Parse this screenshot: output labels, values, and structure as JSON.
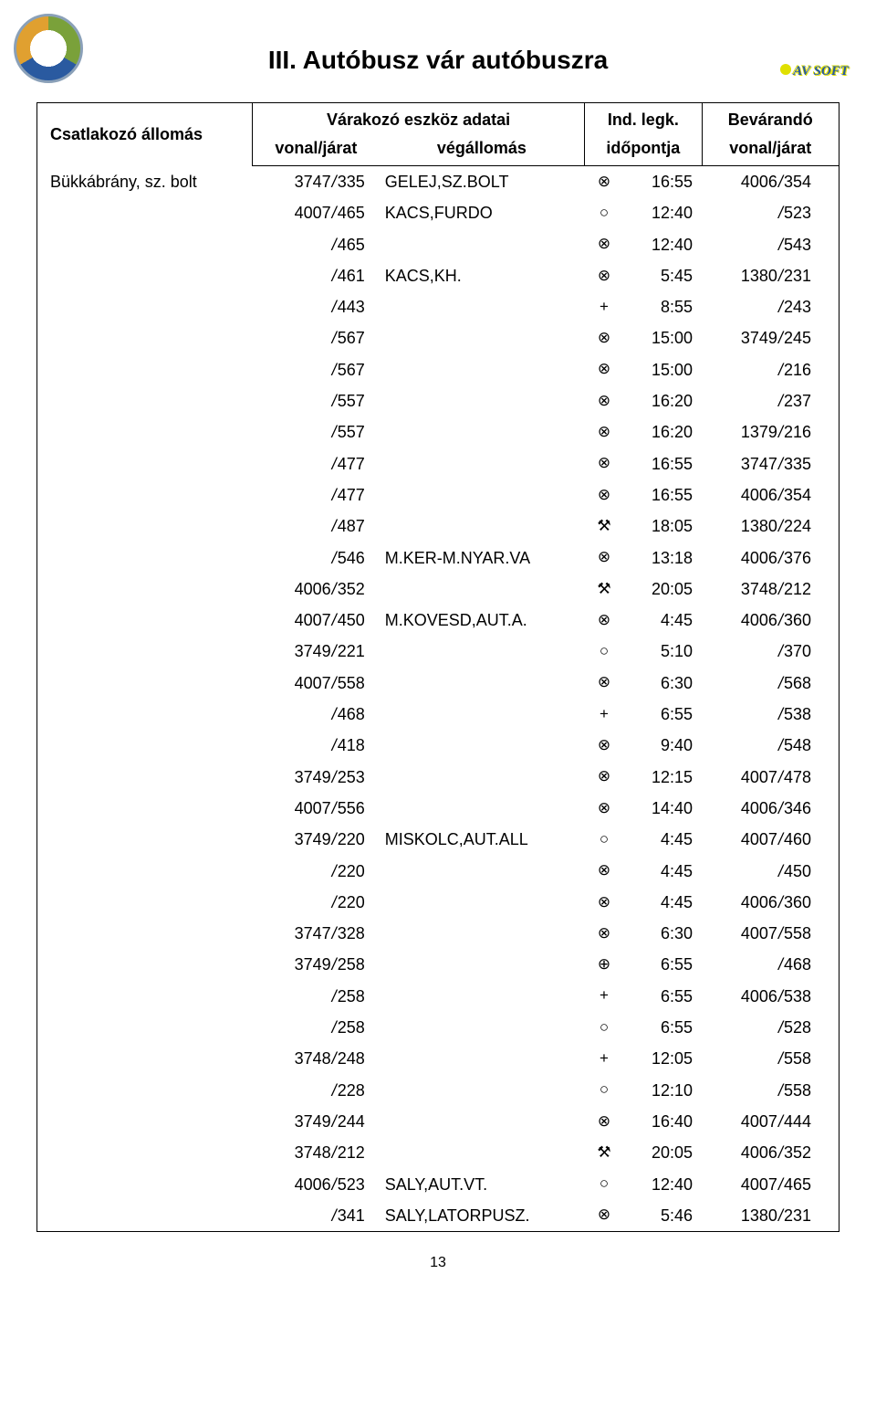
{
  "title": "III. Autóbusz vár autóbuszra",
  "logo_name": "company-logo",
  "stamp_text": "AV SOFT",
  "page_number": "13",
  "headers": {
    "csat": "Csatlakozó állomás",
    "varakozo": "Várakozó eszköz adatai",
    "vonal1": "vonal/járat",
    "vegallomas": "végállomás",
    "indlegk": "Ind. legk.",
    "idopont": "időpontja",
    "bevarando": "Bevárandó",
    "vonal2": "vonal/járat"
  },
  "station": "Bükkábrány, sz. bolt",
  "symbols": {
    "crossO": "⊗",
    "circle": "○",
    "plus": "+",
    "hammer": "⚒",
    "plusO": "⊕"
  },
  "rows": [
    {
      "vj1a": "3747",
      "vj1b": "335",
      "veg": "GELEJ,SZ.BOLT",
      "sym": "crossO",
      "time": "16:55",
      "vj2a": "4006",
      "vj2b": "354"
    },
    {
      "vj1a": "4007",
      "vj1b": "465",
      "veg": "KACS,FURDO",
      "sym": "circle",
      "time": "12:40",
      "vj2a": "",
      "vj2b": "523"
    },
    {
      "vj1a": "",
      "vj1b": "465",
      "veg": "",
      "sym": "crossO",
      "time": "12:40",
      "vj2a": "",
      "vj2b": "543"
    },
    {
      "vj1a": "",
      "vj1b": "461",
      "veg": "KACS,KH.",
      "sym": "crossO",
      "time": "5:45",
      "vj2a": "1380",
      "vj2b": "231"
    },
    {
      "vj1a": "",
      "vj1b": "443",
      "veg": "",
      "sym": "plus",
      "time": "8:55",
      "vj2a": "",
      "vj2b": "243"
    },
    {
      "vj1a": "",
      "vj1b": "567",
      "veg": "",
      "sym": "crossO",
      "time": "15:00",
      "vj2a": "3749",
      "vj2b": "245"
    },
    {
      "vj1a": "",
      "vj1b": "567",
      "veg": "",
      "sym": "crossO",
      "time": "15:00",
      "vj2a": "",
      "vj2b": "216"
    },
    {
      "vj1a": "",
      "vj1b": "557",
      "veg": "",
      "sym": "crossO",
      "time": "16:20",
      "vj2a": "",
      "vj2b": "237"
    },
    {
      "vj1a": "",
      "vj1b": "557",
      "veg": "",
      "sym": "crossO",
      "time": "16:20",
      "vj2a": "1379",
      "vj2b": "216"
    },
    {
      "vj1a": "",
      "vj1b": "477",
      "veg": "",
      "sym": "crossO",
      "time": "16:55",
      "vj2a": "3747",
      "vj2b": "335"
    },
    {
      "vj1a": "",
      "vj1b": "477",
      "veg": "",
      "sym": "crossO",
      "time": "16:55",
      "vj2a": "4006",
      "vj2b": "354"
    },
    {
      "vj1a": "",
      "vj1b": "487",
      "veg": "",
      "sym": "hammer",
      "time": "18:05",
      "vj2a": "1380",
      "vj2b": "224"
    },
    {
      "vj1a": "",
      "vj1b": "546",
      "veg": "M.KER-M.NYAR.VA",
      "sym": "crossO",
      "time": "13:18",
      "vj2a": "4006",
      "vj2b": "376"
    },
    {
      "vj1a": "4006",
      "vj1b": "352",
      "veg": "",
      "sym": "hammer",
      "time": "20:05",
      "vj2a": "3748",
      "vj2b": "212"
    },
    {
      "vj1a": "4007",
      "vj1b": "450",
      "veg": "M.KOVESD,AUT.A.",
      "sym": "crossO",
      "time": "4:45",
      "vj2a": "4006",
      "vj2b": "360"
    },
    {
      "vj1a": "3749",
      "vj1b": "221",
      "veg": "",
      "sym": "circle",
      "time": "5:10",
      "vj2a": "",
      "vj2b": "370"
    },
    {
      "vj1a": "4007",
      "vj1b": "558",
      "veg": "",
      "sym": "crossO",
      "time": "6:30",
      "vj2a": "",
      "vj2b": "568"
    },
    {
      "vj1a": "",
      "vj1b": "468",
      "veg": "",
      "sym": "plus",
      "time": "6:55",
      "vj2a": "",
      "vj2b": "538"
    },
    {
      "vj1a": "",
      "vj1b": "418",
      "veg": "",
      "sym": "crossO",
      "time": "9:40",
      "vj2a": "",
      "vj2b": "548"
    },
    {
      "vj1a": "3749",
      "vj1b": "253",
      "veg": "",
      "sym": "crossO",
      "time": "12:15",
      "vj2a": "4007",
      "vj2b": "478"
    },
    {
      "vj1a": "4007",
      "vj1b": "556",
      "veg": "",
      "sym": "crossO",
      "time": "14:40",
      "vj2a": "4006",
      "vj2b": "346"
    },
    {
      "vj1a": "3749",
      "vj1b": "220",
      "veg": "MISKOLC,AUT.ALL",
      "sym": "circle",
      "time": "4:45",
      "vj2a": "4007",
      "vj2b": "460"
    },
    {
      "vj1a": "",
      "vj1b": "220",
      "veg": "",
      "sym": "crossO",
      "time": "4:45",
      "vj2a": "",
      "vj2b": "450"
    },
    {
      "vj1a": "",
      "vj1b": "220",
      "veg": "",
      "sym": "crossO",
      "time": "4:45",
      "vj2a": "4006",
      "vj2b": "360"
    },
    {
      "vj1a": "3747",
      "vj1b": "328",
      "veg": "",
      "sym": "crossO",
      "time": "6:30",
      "vj2a": "4007",
      "vj2b": "558"
    },
    {
      "vj1a": "3749",
      "vj1b": "258",
      "veg": "",
      "sym": "plusO",
      "time": "6:55",
      "vj2a": "",
      "vj2b": "468"
    },
    {
      "vj1a": "",
      "vj1b": "258",
      "veg": "",
      "sym": "plus",
      "time": "6:55",
      "vj2a": "4006",
      "vj2b": "538"
    },
    {
      "vj1a": "",
      "vj1b": "258",
      "veg": "",
      "sym": "circle",
      "time": "6:55",
      "vj2a": "",
      "vj2b": "528"
    },
    {
      "vj1a": "3748",
      "vj1b": "248",
      "veg": "",
      "sym": "plus",
      "time": "12:05",
      "vj2a": "",
      "vj2b": "558"
    },
    {
      "vj1a": "",
      "vj1b": "228",
      "veg": "",
      "sym": "circle",
      "time": "12:10",
      "vj2a": "",
      "vj2b": "558"
    },
    {
      "vj1a": "3749",
      "vj1b": "244",
      "veg": "",
      "sym": "crossO",
      "time": "16:40",
      "vj2a": "4007",
      "vj2b": "444"
    },
    {
      "vj1a": "3748",
      "vj1b": "212",
      "veg": "",
      "sym": "hammer",
      "time": "20:05",
      "vj2a": "4006",
      "vj2b": "352"
    },
    {
      "vj1a": "4006",
      "vj1b": "523",
      "veg": "SALY,AUT.VT.",
      "sym": "circle",
      "time": "12:40",
      "vj2a": "4007",
      "vj2b": "465"
    },
    {
      "vj1a": "",
      "vj1b": "341",
      "veg": "SALY,LATORPUSZ.",
      "sym": "crossO",
      "time": "5:46",
      "vj2a": "1380",
      "vj2b": "231"
    }
  ]
}
